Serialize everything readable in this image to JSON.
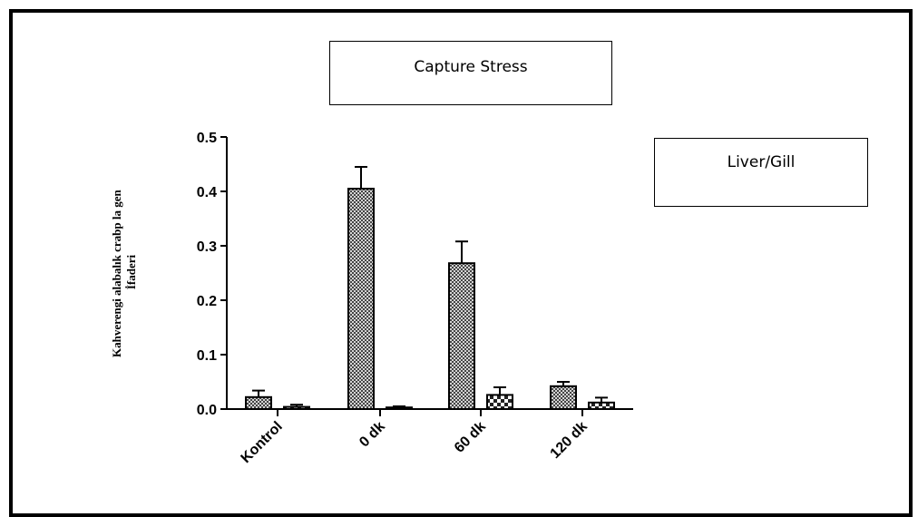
{
  "chart_data": {
    "type": "bar",
    "title": "Capture Stress",
    "legend_text": "Liver/Gill",
    "ylabel_lines": [
      "Kahverengi alabalık crabp la gen",
      "İfaderi"
    ],
    "categories": [
      "Kontrol",
      "0 dk",
      "60 dk",
      "120 dk"
    ],
    "ylim": [
      0,
      0.5
    ],
    "yticks": [
      0.0,
      0.1,
      0.2,
      0.3,
      0.4,
      0.5
    ],
    "series": [
      {
        "values": [
          0.022,
          0.405,
          0.268,
          0.042
        ],
        "errors": [
          0.012,
          0.04,
          0.04,
          0.008
        ]
      },
      {
        "values": [
          0.004,
          0.003,
          0.026,
          0.012
        ],
        "errors": [
          0.004,
          0.002,
          0.014,
          0.009
        ]
      }
    ],
    "grid": false
  }
}
